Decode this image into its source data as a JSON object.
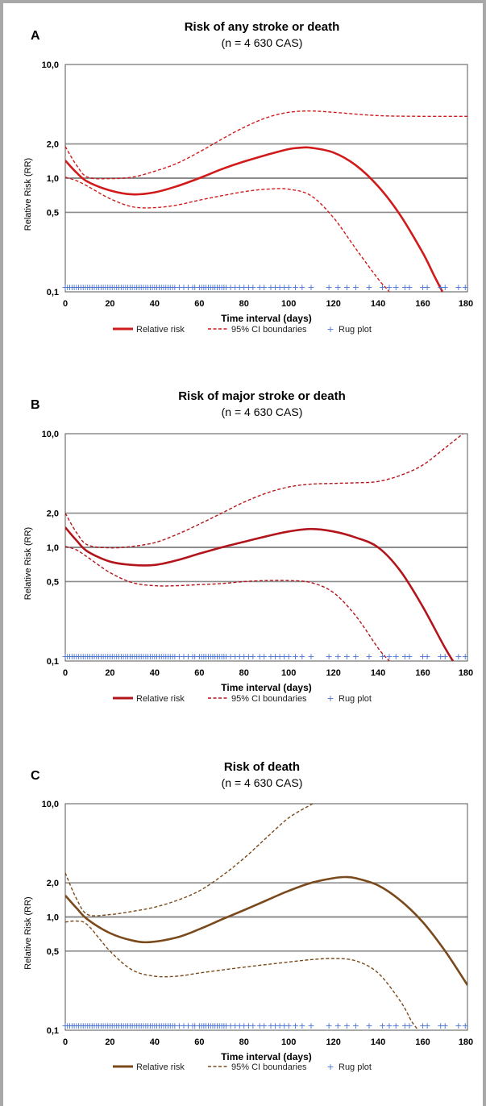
{
  "chart_data": [
    {
      "panel_letter": "A",
      "type": "line",
      "title": "Risk of any stroke or death",
      "subtitle": "(n = 4 630 CAS)",
      "xlabel": "Time interval (days)",
      "ylabel": "Relative Risk (RR)",
      "xlim": [
        0,
        180
      ],
      "ylim": [
        0.1,
        10
      ],
      "yscale": "log",
      "x_ticks": [
        "0",
        "20",
        "40",
        "60",
        "80",
        "100",
        "120",
        "140",
        "160",
        "180"
      ],
      "y_ticks": [
        "10,0",
        "2,0",
        "1,0",
        "0,5",
        "0,1"
      ],
      "reference_lines": [
        2.0,
        1.0,
        0.5
      ],
      "color": "#d11b1b",
      "series": [
        {
          "name": "Relative risk",
          "style": "solid",
          "x": [
            0,
            5,
            10,
            20,
            30,
            40,
            50,
            60,
            70,
            80,
            90,
            100,
            105,
            110,
            120,
            130,
            140,
            150,
            160,
            165,
            170
          ],
          "y": [
            1.43,
            1.12,
            0.93,
            0.78,
            0.72,
            0.75,
            0.85,
            1.0,
            1.2,
            1.4,
            1.6,
            1.8,
            1.85,
            1.85,
            1.68,
            1.3,
            0.85,
            0.47,
            0.22,
            0.14,
            0.09
          ]
        },
        {
          "name": "95% CI boundaries",
          "style": "dashed",
          "x": [
            0,
            5,
            10,
            20,
            30,
            40,
            50,
            60,
            70,
            80,
            90,
            100,
            110,
            120,
            140,
            160,
            180
          ],
          "y": [
            1.9,
            1.3,
            1.02,
            0.99,
            1.02,
            1.15,
            1.35,
            1.7,
            2.2,
            2.8,
            3.4,
            3.8,
            3.9,
            3.8,
            3.55,
            3.5,
            3.5
          ]
        },
        {
          "name": "95% CI boundaries",
          "style": "dashed",
          "x": [
            0,
            5,
            10,
            20,
            30,
            40,
            50,
            60,
            70,
            80,
            90,
            100,
            110,
            120,
            130,
            140,
            145,
            148
          ],
          "y": [
            1.02,
            0.95,
            0.85,
            0.66,
            0.56,
            0.55,
            0.58,
            0.64,
            0.7,
            0.76,
            0.8,
            0.8,
            0.7,
            0.45,
            0.24,
            0.13,
            0.1,
            0.08
          ]
        }
      ],
      "rug_plot": {
        "name": "Rug plot",
        "y": 0.11,
        "x": [
          0,
          1,
          2,
          3,
          4,
          5,
          6,
          7,
          8,
          9,
          10,
          11,
          12,
          13,
          14,
          15,
          16,
          17,
          18,
          19,
          20,
          21,
          22,
          23,
          24,
          25,
          26,
          27,
          28,
          29,
          30,
          31,
          32,
          33,
          34,
          35,
          36,
          37,
          38,
          39,
          40,
          41,
          42,
          43,
          44,
          45,
          46,
          47,
          48,
          49,
          51,
          53,
          55,
          57,
          58,
          60,
          61,
          62,
          63,
          64,
          65,
          66,
          67,
          68,
          69,
          70,
          71,
          72,
          74,
          76,
          78,
          80,
          82,
          84,
          87,
          89,
          92,
          94,
          96,
          98,
          100,
          103,
          106,
          110,
          118,
          122,
          126,
          130,
          136,
          142,
          145,
          148,
          152,
          154,
          160,
          162,
          168,
          170,
          176,
          179
        ]
      }
    },
    {
      "panel_letter": "B",
      "type": "line",
      "title": "Risk of major stroke or death",
      "subtitle": "(n = 4 630 CAS)",
      "xlabel": "Time interval (days)",
      "ylabel": "Relative Risk (RR)",
      "xlim": [
        0,
        180
      ],
      "ylim": [
        0.1,
        10
      ],
      "yscale": "log",
      "x_ticks": [
        "0",
        "20",
        "40",
        "60",
        "80",
        "100",
        "120",
        "140",
        "160",
        "180"
      ],
      "y_ticks": [
        "10,0",
        "2,0",
        "1,0",
        "0,5",
        "0,1"
      ],
      "reference_lines": [
        2.0,
        1.0,
        0.5
      ],
      "color": "#b3151c",
      "series": [
        {
          "name": "Relative risk",
          "style": "solid",
          "x": [
            0,
            5,
            10,
            20,
            30,
            40,
            50,
            60,
            70,
            80,
            90,
            100,
            110,
            120,
            130,
            140,
            150,
            160,
            170,
            175
          ],
          "y": [
            1.5,
            1.15,
            0.92,
            0.75,
            0.7,
            0.7,
            0.77,
            0.88,
            1.0,
            1.12,
            1.25,
            1.38,
            1.45,
            1.38,
            1.22,
            1.0,
            0.62,
            0.3,
            0.13,
            0.09
          ]
        },
        {
          "name": "95% CI boundaries",
          "style": "dashed",
          "x": [
            0,
            5,
            10,
            20,
            30,
            40,
            50,
            60,
            70,
            80,
            90,
            100,
            110,
            120,
            130,
            140,
            150,
            160,
            170,
            178
          ],
          "y": [
            2.0,
            1.35,
            1.05,
            0.99,
            1.02,
            1.1,
            1.3,
            1.6,
            2.0,
            2.5,
            3.0,
            3.4,
            3.6,
            3.65,
            3.7,
            3.8,
            4.3,
            5.3,
            7.5,
            10.0
          ]
        },
        {
          "name": "95% CI boundaries",
          "style": "dashed",
          "x": [
            0,
            5,
            10,
            20,
            30,
            40,
            50,
            60,
            70,
            80,
            90,
            100,
            110,
            120,
            130,
            140,
            145,
            147
          ],
          "y": [
            1.02,
            0.95,
            0.82,
            0.6,
            0.49,
            0.46,
            0.46,
            0.47,
            0.48,
            0.5,
            0.51,
            0.51,
            0.49,
            0.4,
            0.25,
            0.13,
            0.1,
            0.09
          ]
        }
      ],
      "rug_plot": {
        "name": "Rug plot",
        "y": 0.11,
        "x": [
          0,
          1,
          2,
          3,
          4,
          5,
          6,
          7,
          8,
          9,
          10,
          11,
          12,
          13,
          14,
          15,
          16,
          17,
          18,
          19,
          20,
          21,
          22,
          23,
          24,
          25,
          26,
          27,
          28,
          29,
          30,
          31,
          32,
          33,
          34,
          35,
          36,
          37,
          38,
          39,
          40,
          41,
          42,
          43,
          44,
          45,
          46,
          47,
          48,
          49,
          51,
          53,
          55,
          57,
          58,
          60,
          61,
          62,
          63,
          64,
          65,
          66,
          67,
          68,
          69,
          70,
          71,
          72,
          74,
          76,
          78,
          80,
          82,
          84,
          87,
          89,
          92,
          94,
          96,
          98,
          100,
          103,
          106,
          110,
          118,
          122,
          126,
          130,
          136,
          142,
          145,
          148,
          152,
          154,
          160,
          162,
          168,
          170,
          176,
          179
        ]
      }
    },
    {
      "panel_letter": "C",
      "type": "line",
      "title": "Risk of death",
      "subtitle": "(n = 4 630 CAS)",
      "xlabel": "Time interval (days)",
      "ylabel": "Relative Risk (RR)",
      "xlim": [
        0,
        180
      ],
      "ylim": [
        0.1,
        10
      ],
      "yscale": "log",
      "x_ticks": [
        "0",
        "20",
        "40",
        "60",
        "80",
        "100",
        "120",
        "140",
        "160",
        "180"
      ],
      "y_ticks": [
        "10,0",
        "2,0",
        "1,0",
        "0,5",
        "0,1"
      ],
      "reference_lines": [
        2.0,
        1.0,
        0.5
      ],
      "color": "#7b4a1c",
      "series": [
        {
          "name": "Relative risk",
          "style": "solid",
          "x": [
            0,
            5,
            10,
            20,
            30,
            38,
            50,
            60,
            70,
            80,
            90,
            100,
            110,
            120,
            125,
            130,
            140,
            150,
            160,
            170,
            180
          ],
          "y": [
            1.55,
            1.2,
            0.95,
            0.72,
            0.62,
            0.6,
            0.66,
            0.78,
            0.95,
            1.15,
            1.4,
            1.7,
            2.0,
            2.2,
            2.25,
            2.2,
            1.9,
            1.4,
            0.9,
            0.5,
            0.25
          ]
        },
        {
          "name": "95% CI boundaries",
          "style": "dashed",
          "x": [
            0,
            5,
            10,
            20,
            30,
            40,
            50,
            60,
            70,
            80,
            90,
            100,
            110,
            115
          ],
          "y": [
            2.45,
            1.45,
            1.05,
            1.05,
            1.12,
            1.22,
            1.4,
            1.7,
            2.3,
            3.3,
            5.0,
            7.5,
            9.8,
            11.0
          ]
        },
        {
          "name": "95% CI boundaries",
          "style": "dashed",
          "x": [
            0,
            5,
            10,
            20,
            30,
            40,
            50,
            60,
            70,
            80,
            90,
            100,
            110,
            120,
            130,
            140,
            150,
            155,
            158
          ],
          "y": [
            0.9,
            0.92,
            0.85,
            0.5,
            0.34,
            0.3,
            0.3,
            0.32,
            0.34,
            0.36,
            0.38,
            0.4,
            0.42,
            0.43,
            0.41,
            0.32,
            0.18,
            0.12,
            0.1
          ]
        }
      ],
      "rug_plot": {
        "name": "Rug plot",
        "y": 0.11,
        "x": [
          0,
          1,
          2,
          3,
          4,
          5,
          6,
          7,
          8,
          9,
          10,
          11,
          12,
          13,
          14,
          15,
          16,
          17,
          18,
          19,
          20,
          21,
          22,
          23,
          24,
          25,
          26,
          27,
          28,
          29,
          30,
          31,
          32,
          33,
          34,
          35,
          36,
          37,
          38,
          39,
          40,
          41,
          42,
          43,
          44,
          45,
          46,
          47,
          48,
          49,
          51,
          53,
          55,
          57,
          58,
          60,
          61,
          62,
          63,
          64,
          65,
          66,
          67,
          68,
          69,
          70,
          71,
          72,
          74,
          76,
          78,
          80,
          82,
          84,
          87,
          89,
          92,
          94,
          96,
          98,
          100,
          103,
          106,
          110,
          118,
          122,
          126,
          130,
          136,
          142,
          145,
          148,
          152,
          154,
          160,
          162,
          168,
          170,
          176,
          179
        ]
      }
    }
  ]
}
